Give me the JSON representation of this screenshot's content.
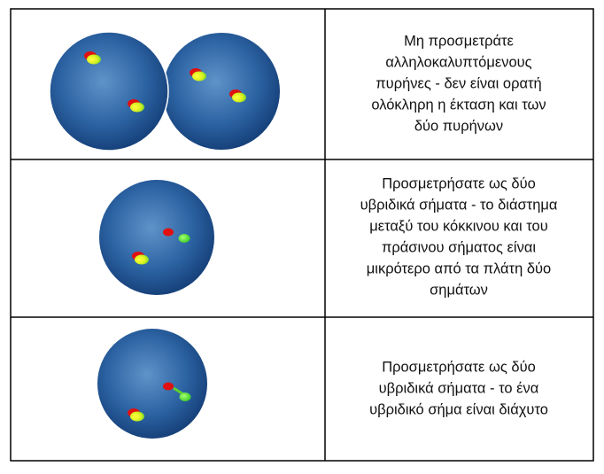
{
  "table": {
    "rows": [
      {
        "lines": [
          "Μη προσμετράτε",
          "αλληλοκαλυπτόμενους",
          "πυρήνες - δεν είναι ορατή",
          "ολόκληρη η έκταση και των",
          "δύο πυρήνων"
        ]
      },
      {
        "lines": [
          "Προσμετρήσατε ως δύο",
          "υβριδικά σήματα - το διάστημα",
          "μεταξύ του κόκκινου και του",
          "πράσινου σήματος είναι",
          "μικρότερο από τα πλάτη δύο",
          "σημάτων"
        ]
      },
      {
        "lines": [
          "Προσμετρήσατε ως δύο",
          "υβριδικά σήματα - το ένα",
          "υβριδικό σήμα είναι διάχυτο"
        ]
      }
    ]
  }
}
